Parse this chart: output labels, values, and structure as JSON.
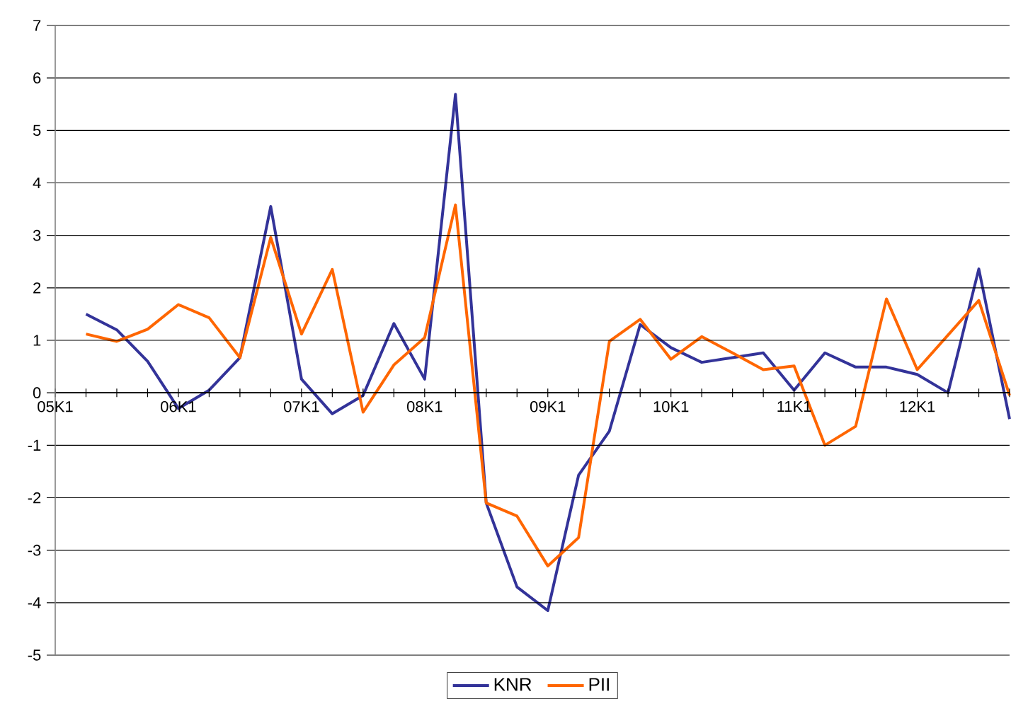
{
  "chart_data": {
    "type": "line",
    "categories": [
      "05K1",
      null,
      null,
      null,
      "06K1",
      null,
      null,
      null,
      "07K1",
      null,
      null,
      null,
      "08K1",
      null,
      null,
      null,
      "09K1",
      null,
      null,
      null,
      "10K1",
      null,
      null,
      null,
      "11K1",
      null,
      null,
      null,
      "12K1",
      null,
      null,
      null
    ],
    "series": [
      {
        "name": "KNR",
        "color": "#333399",
        "values": [
          null,
          1.5,
          1.2,
          0.6,
          -0.3,
          0.05,
          0.67,
          3.55,
          0.26,
          -0.4,
          -0.05,
          1.32,
          0.26,
          5.69,
          -2.1,
          -3.7,
          -4.15,
          -1.57,
          -0.73,
          1.3,
          0.86,
          0.58,
          0.67,
          0.76,
          0.05,
          0.76,
          0.49,
          0.49,
          0.35,
          0.0,
          2.36,
          -0.5
        ]
      },
      {
        "name": "PII",
        "color": "#ff6600",
        "values": [
          null,
          1.12,
          0.98,
          1.21,
          1.68,
          1.43,
          0.67,
          2.96,
          1.12,
          2.35,
          -0.37,
          0.53,
          1.05,
          3.58,
          -2.1,
          -2.35,
          -3.3,
          -2.76,
          0.98,
          1.4,
          0.64,
          1.07,
          0.76,
          0.44,
          0.51,
          -1.0,
          -0.64,
          1.79,
          0.44,
          1.1,
          1.76,
          -0.05
        ]
      }
    ],
    "ylim": [
      -5,
      7
    ],
    "yticks": [
      -5,
      -4,
      -3,
      -2,
      -1,
      0,
      1,
      2,
      3,
      4,
      5,
      6,
      7
    ],
    "grid": "y",
    "legend": "bottom"
  }
}
